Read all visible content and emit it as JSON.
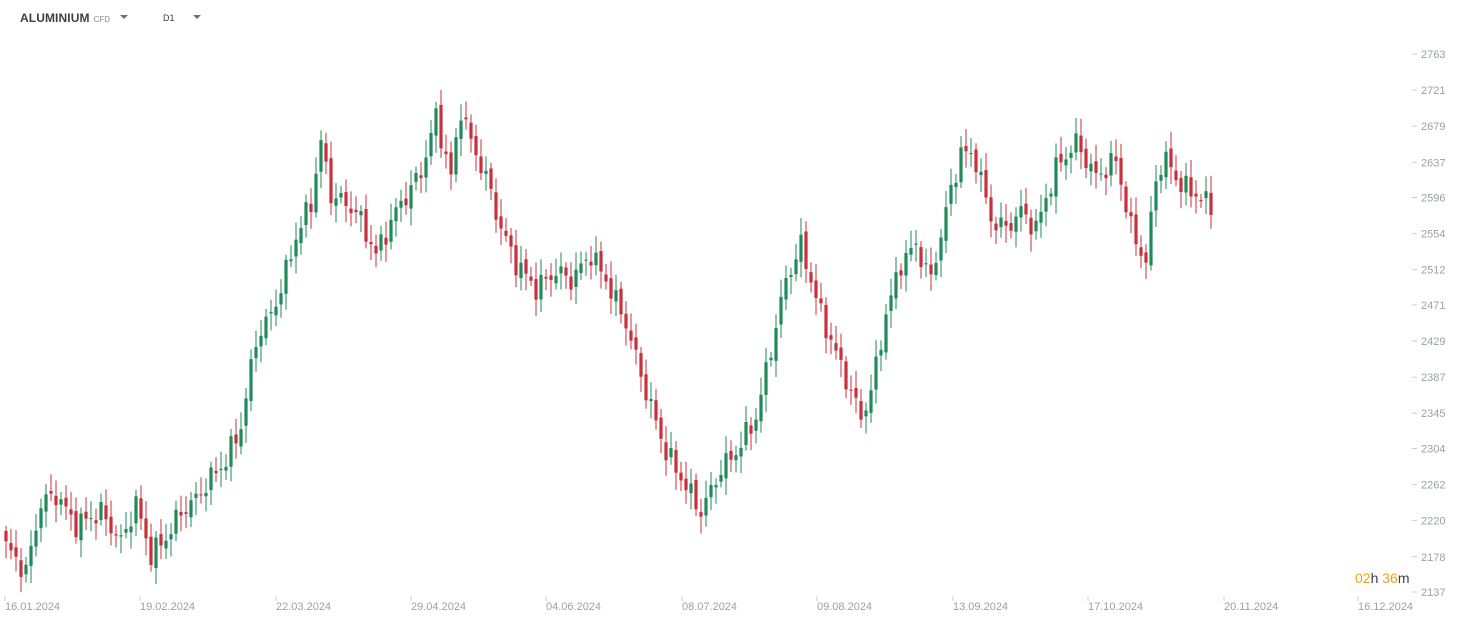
{
  "header": {
    "symbol": "ALUMINIUM",
    "symbol_type": "CFD",
    "timeframe": "D1"
  },
  "countdown": {
    "hours": "02",
    "hours_unit": "h",
    "minutes": "36",
    "minutes_unit": "m"
  },
  "colors": {
    "up": "#1f8a5a",
    "down": "#c8303c",
    "axis_text": "#9aa0a8",
    "accent": "#f0a020"
  },
  "chart_data": {
    "type": "candlestick",
    "title": "",
    "xlabel": "",
    "ylabel": "",
    "y_ticks": [
      2137,
      2178,
      2220,
      2262,
      2304,
      2345,
      2387,
      2429,
      2471,
      2512,
      2554,
      2596,
      2637,
      2679,
      2721,
      2763
    ],
    "x_ticks": [
      "16.01.2024",
      "19.02.2024",
      "22.03.2024",
      "29.04.2024",
      "04.06.2024",
      "08.07.2024",
      "09.08.2024",
      "13.09.2024",
      "17.10.2024",
      "20.11.2024",
      "16.12.2024"
    ],
    "ylim": [
      2137,
      2763
    ],
    "grid": false,
    "close_anchors": [
      [
        0,
        2190
      ],
      [
        4,
        2160
      ],
      [
        7,
        2240
      ],
      [
        10,
        2250
      ],
      [
        14,
        2215
      ],
      [
        19,
        2230
      ],
      [
        23,
        2195
      ],
      [
        26,
        2240
      ],
      [
        29,
        2180
      ],
      [
        32,
        2200
      ],
      [
        35,
        2230
      ],
      [
        38,
        2245
      ],
      [
        41,
        2270
      ],
      [
        44,
        2290
      ],
      [
        47,
        2330
      ],
      [
        50,
        2430
      ],
      [
        53,
        2460
      ],
      [
        55,
        2490
      ],
      [
        58,
        2550
      ],
      [
        61,
        2590
      ],
      [
        63,
        2660
      ],
      [
        65,
        2600
      ],
      [
        70,
        2580
      ],
      [
        74,
        2530
      ],
      [
        78,
        2580
      ],
      [
        83,
        2625
      ],
      [
        86,
        2690
      ],
      [
        89,
        2620
      ],
      [
        91,
        2700
      ],
      [
        93,
        2660
      ],
      [
        96,
        2620
      ],
      [
        99,
        2560
      ],
      [
        102,
        2520
      ],
      [
        106,
        2490
      ],
      [
        110,
        2510
      ],
      [
        113,
        2500
      ],
      [
        117,
        2530
      ],
      [
        120,
        2500
      ],
      [
        124,
        2450
      ],
      [
        128,
        2370
      ],
      [
        132,
        2300
      ],
      [
        136,
        2260
      ],
      [
        139,
        2230
      ],
      [
        143,
        2280
      ],
      [
        146,
        2300
      ],
      [
        150,
        2340
      ],
      [
        153,
        2420
      ],
      [
        156,
        2500
      ],
      [
        159,
        2540
      ],
      [
        163,
        2460
      ],
      [
        167,
        2400
      ],
      [
        171,
        2340
      ],
      [
        173,
        2370
      ],
      [
        176,
        2460
      ],
      [
        179,
        2520
      ],
      [
        182,
        2540
      ],
      [
        185,
        2500
      ],
      [
        188,
        2580
      ],
      [
        191,
        2650
      ],
      [
        194,
        2640
      ],
      [
        197,
        2570
      ],
      [
        200,
        2560
      ],
      [
        203,
        2580
      ],
      [
        206,
        2560
      ],
      [
        210,
        2630
      ],
      [
        214,
        2660
      ],
      [
        218,
        2620
      ],
      [
        222,
        2640
      ],
      [
        225,
        2560
      ],
      [
        228,
        2520
      ],
      [
        230,
        2620
      ],
      [
        232,
        2640
      ],
      [
        235,
        2610
      ],
      [
        238,
        2600
      ],
      [
        241,
        2585
      ]
    ]
  }
}
